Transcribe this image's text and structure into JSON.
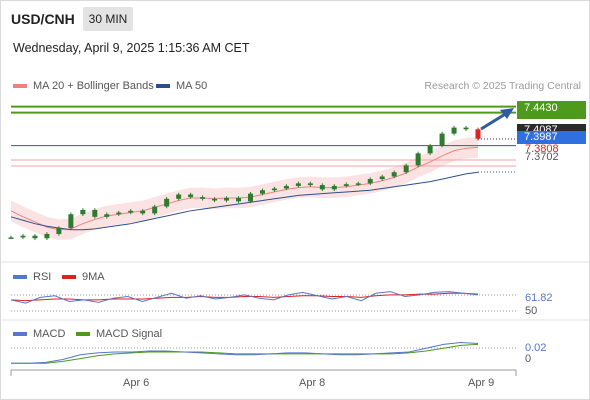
{
  "header": {
    "symbol": "USD/CNH",
    "timeframe": "30 MIN",
    "datetime": "Wednesday, April 9, 2025 1:15:36 AM CET"
  },
  "legend": {
    "ma20_label": "MA 20 + Bollinger Bands",
    "ma50_label": "MA 50",
    "credit": "Research © 2025 Trading Central",
    "colors": {
      "ma20": "#f08080",
      "ma50": "#2c4f8c",
      "band": "#fbd9d9",
      "resistance": "#4e9a1a",
      "candle": "#2e7a2e"
    }
  },
  "price_labels": {
    "resistance": "7.4430",
    "last": "7.4087",
    "ma_value": "7.3987",
    "support": "7.3808",
    "ma50_value": "7.3702"
  },
  "rsi_panel": {
    "rsi_label": "RSI",
    "ma_label": "9MA",
    "value_top": "61.82",
    "value_bottom": "50",
    "colors": {
      "rsi": "#5577cc",
      "ma": "#dd2222"
    }
  },
  "macd_panel": {
    "macd_label": "MACD",
    "signal_label": "MACD Signal",
    "value_top": "0.02",
    "value_bottom": "0",
    "colors": {
      "macd": "#5577cc",
      "signal": "#4e9a1a"
    }
  },
  "x_axis": {
    "labels": [
      "Apr 6",
      "Apr 8",
      "Apr 9"
    ]
  },
  "chart_data": {
    "type": "line",
    "series": [
      {
        "values": [
          7.294,
          7.296,
          7.293,
          7.298,
          7.305,
          7.321,
          7.326,
          7.318,
          7.321,
          7.323,
          7.325,
          7.322,
          7.33,
          7.339,
          7.344,
          7.341,
          7.339,
          7.337,
          7.34,
          7.336,
          7.345,
          7.349,
          7.351,
          7.354,
          7.357,
          7.355,
          7.35,
          7.354,
          7.356,
          7.357,
          7.362,
          7.365,
          7.37,
          7.378,
          7.392,
          7.401,
          7.415,
          7.422,
          7.42,
          7.409
        ]
      },
      {
        "name": "MA 20 + Bollinger Bands",
        "values": [
          7.325,
          7.318,
          7.312,
          7.306,
          7.303,
          7.304,
          7.31,
          7.315,
          7.319,
          7.321,
          7.323,
          7.325,
          7.329,
          7.333,
          7.337,
          7.34,
          7.34,
          7.339,
          7.34,
          7.34,
          7.341,
          7.344,
          7.347,
          7.35,
          7.352,
          7.353,
          7.352,
          7.352,
          7.353,
          7.355,
          7.357,
          7.36,
          7.364,
          7.369,
          7.376,
          7.382,
          7.389,
          7.395,
          7.398,
          7.399
        ]
      },
      {
        "name": "MA 50",
        "values": [
          7.318,
          7.314,
          7.31,
          7.307,
          7.305,
          7.303,
          7.303,
          7.304,
          7.306,
          7.308,
          7.31,
          7.313,
          7.316,
          7.319,
          7.322,
          7.325,
          7.327,
          7.329,
          7.331,
          7.333,
          7.335,
          7.337,
          7.339,
          7.341,
          7.343,
          7.344,
          7.345,
          7.346,
          7.347,
          7.348,
          7.349,
          7.351,
          7.353,
          7.355,
          7.357,
          7.359,
          7.362,
          7.365,
          7.368,
          7.37
        ]
      }
    ],
    "ylim": [
      7.27,
      7.46
    ],
    "levels": {
      "resistance": 7.443,
      "support": 7.3808
    },
    "rsi": {
      "rsi": [
        52,
        48,
        55,
        57,
        50,
        52,
        49,
        54,
        56,
        50,
        55,
        60,
        54,
        57,
        53,
        55,
        58,
        54,
        52,
        58,
        61,
        57,
        53,
        56,
        51,
        60,
        62,
        56,
        58,
        61,
        62,
        60,
        58
      ],
      "ma": [
        52,
        51,
        52,
        53,
        53,
        52,
        52,
        53,
        53,
        53,
        54,
        55,
        55,
        56,
        55,
        55,
        56,
        56,
        55,
        56,
        57,
        57,
        56,
        56,
        55,
        57,
        58,
        58,
        59,
        59,
        60,
        60,
        59
      ],
      "ylim": [
        30,
        70
      ]
    },
    "macd": {
      "macd": [
        0.0,
        0.0,
        0.001,
        0.004,
        0.009,
        0.011,
        0.012,
        0.012,
        0.013,
        0.013,
        0.012,
        0.011,
        0.01,
        0.009,
        0.009,
        0.01,
        0.011,
        0.011,
        0.01,
        0.009,
        0.009,
        0.01,
        0.011,
        0.012,
        0.016,
        0.02,
        0.022,
        0.021
      ],
      "signal": [
        0.0,
        0.0,
        0.0,
        0.002,
        0.005,
        0.008,
        0.01,
        0.011,
        0.012,
        0.012,
        0.012,
        0.012,
        0.011,
        0.01,
        0.01,
        0.01,
        0.01,
        0.01,
        0.01,
        0.01,
        0.01,
        0.01,
        0.01,
        0.011,
        0.013,
        0.016,
        0.019,
        0.02
      ],
      "ylim": [
        -0.005,
        0.03
      ]
    }
  }
}
